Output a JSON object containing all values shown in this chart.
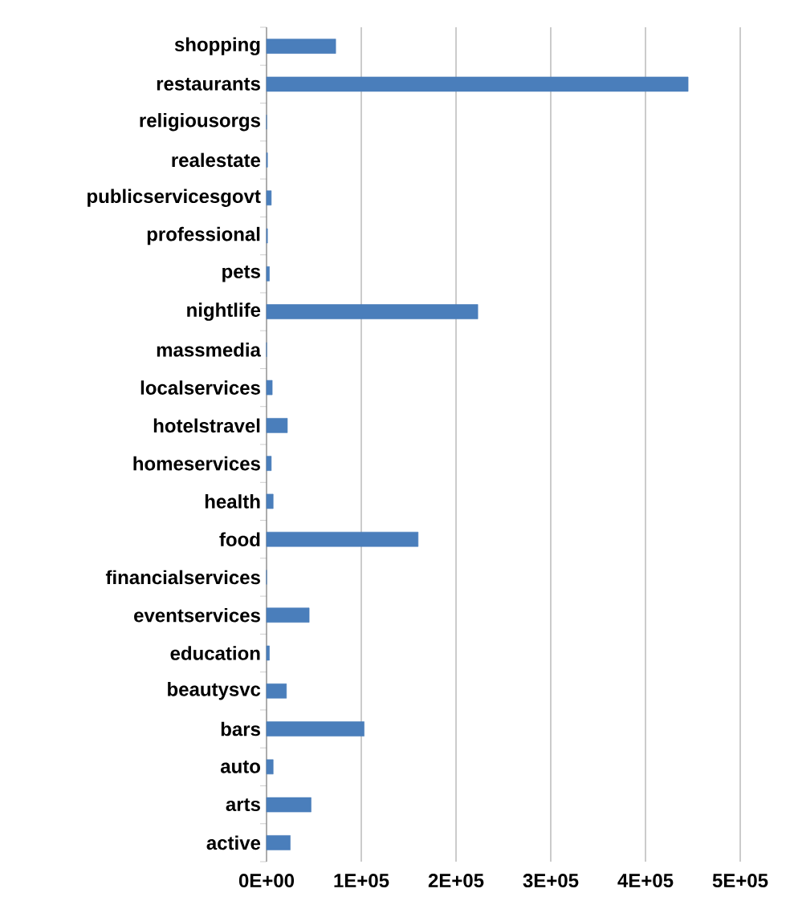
{
  "chart_data": {
    "type": "bar",
    "orientation": "horizontal",
    "categories": [
      "shopping",
      "restaurants",
      "religiousorgs",
      "realestate",
      "publicservicesgovt",
      "professional",
      "pets",
      "nightlife",
      "massmedia",
      "localservices",
      "hotelstravel",
      "homeservices",
      "health",
      "food",
      "financialservices",
      "eventservices",
      "education",
      "beautysvc",
      "bars",
      "auto",
      "arts",
      "active"
    ],
    "values": [
      73000,
      445000,
      0,
      1000,
      5000,
      1000,
      3000,
      223000,
      0,
      6000,
      22000,
      5000,
      7000,
      160000,
      0,
      45000,
      3000,
      21000,
      103000,
      7000,
      47000,
      25000
    ],
    "color": "#4a7ebb",
    "xlim": [
      0,
      500000
    ],
    "xticks": [
      {
        "value": 0,
        "label": "0E+00"
      },
      {
        "value": 100000,
        "label": "1E+05"
      },
      {
        "value": 200000,
        "label": "2E+05"
      },
      {
        "value": 300000,
        "label": "3E+05"
      },
      {
        "value": 400000,
        "label": "4E+05"
      },
      {
        "value": 500000,
        "label": "5E+05"
      }
    ],
    "grid": "x"
  }
}
